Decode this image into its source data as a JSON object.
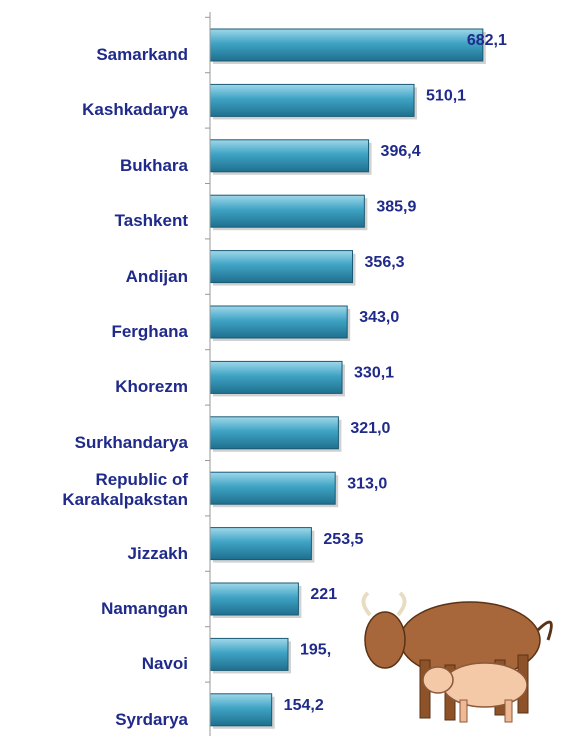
{
  "chart_data": {
    "type": "bar",
    "orientation": "horizontal",
    "categories": [
      "Samarkand",
      "Kashkadarya",
      "Bukhara",
      "Tashkent",
      "Andijan",
      "Ferghana",
      "Khorezm",
      "Surkhandarya",
      "Republic of\nKarakalpakstan",
      "Jizzakh",
      "Namangan",
      "Navoi",
      "Syrdarya"
    ],
    "values": [
      682.1,
      510.1,
      396.4,
      385.9,
      356.3,
      343.0,
      330.1,
      321.0,
      313.0,
      253.5,
      221,
      195,
      154.2
    ],
    "value_labels": [
      "682,1",
      "510,1",
      "396,4",
      "385,9",
      "356,3",
      "343,0",
      "330,1",
      "321,0",
      "313,0",
      "253,5",
      "221",
      "195,",
      "154,2"
    ],
    "color": "#2f8fb0",
    "xlim": [
      0,
      880
    ]
  }
}
